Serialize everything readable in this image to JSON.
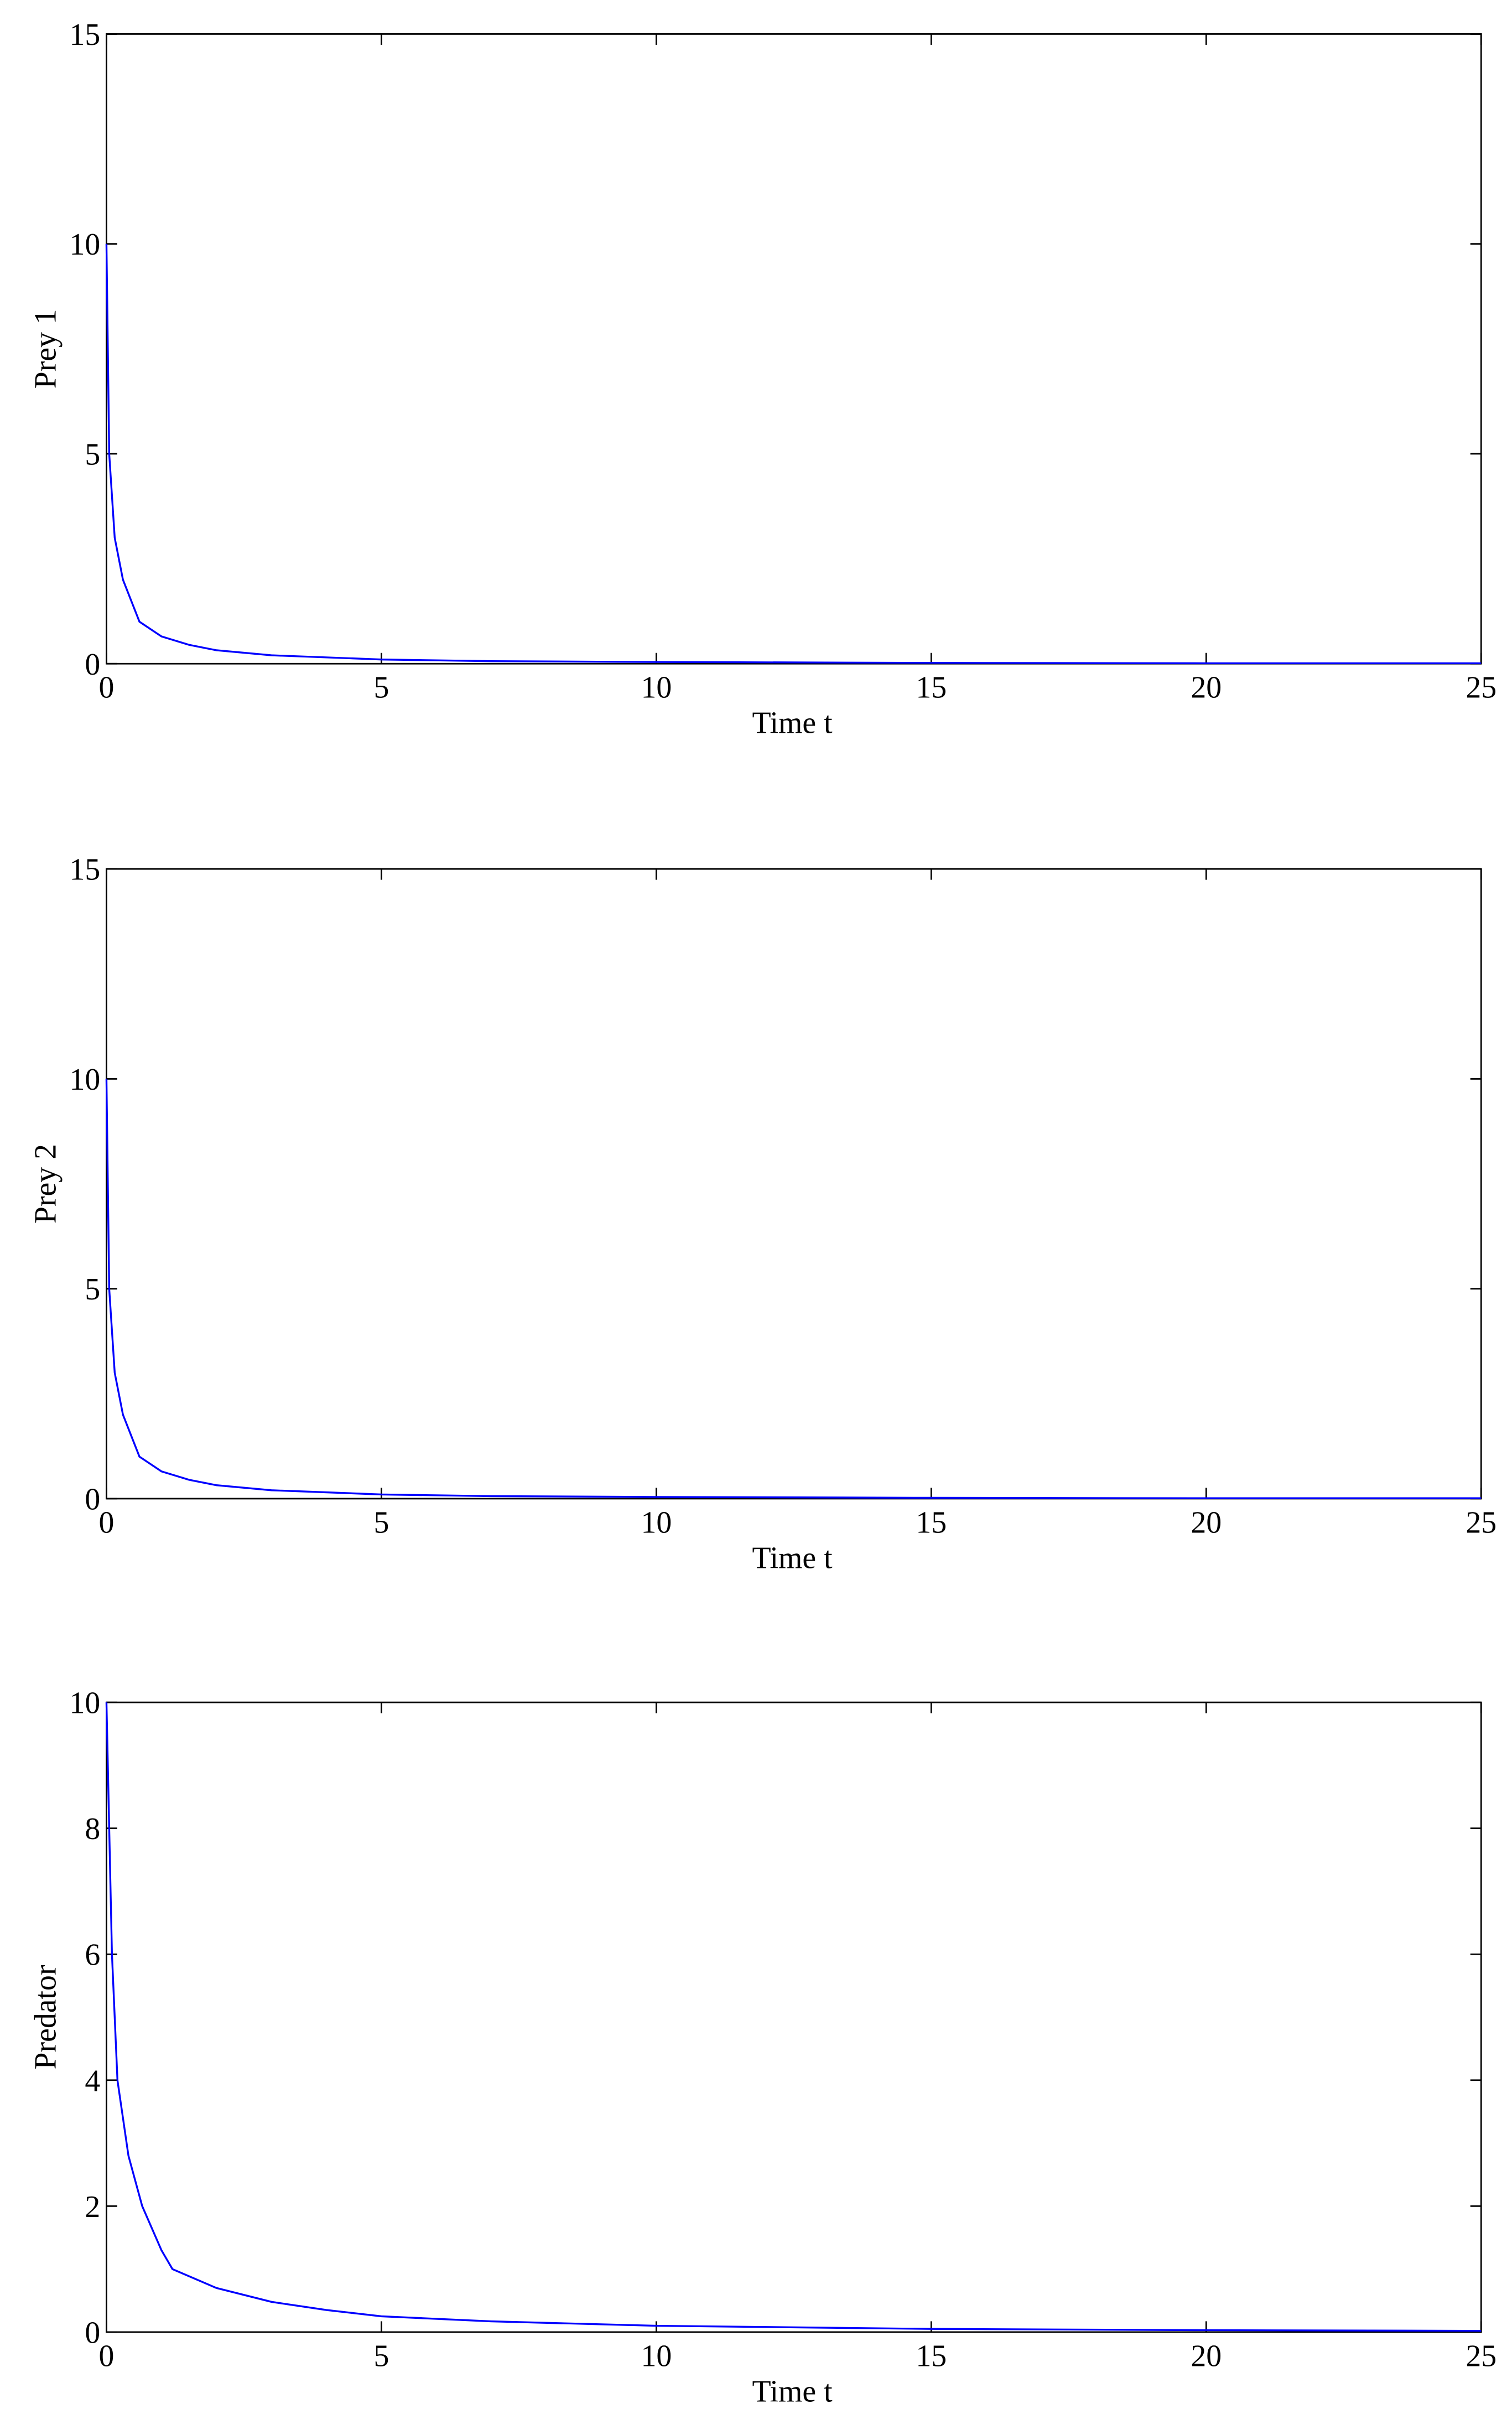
{
  "chart_data": [
    {
      "type": "line",
      "x_label": "Time t",
      "y_label": "Prey 1",
      "x": [
        0,
        0.05,
        0.15,
        0.3,
        0.6,
        1,
        1.5,
        2,
        3,
        5,
        7,
        10,
        15,
        20,
        25
      ],
      "series": [
        {
          "color": "#0000ff",
          "values": [
            10,
            5,
            3,
            2,
            1,
            0.65,
            0.45,
            0.32,
            0.2,
            0.1,
            0.06,
            0.04,
            0.02,
            0.01,
            0.01
          ]
        }
      ],
      "xlim": [
        0,
        25
      ],
      "xticks": [
        0,
        5,
        10,
        15,
        20,
        25
      ],
      "ylim": [
        0,
        15
      ],
      "yticks": [
        0,
        5,
        10,
        15
      ]
    },
    {
      "type": "line",
      "x_label": "Time t",
      "y_label": "Prey 2",
      "x": [
        0,
        0.05,
        0.15,
        0.3,
        0.6,
        1,
        1.5,
        2,
        3,
        5,
        7,
        10,
        15,
        20,
        25
      ],
      "series": [
        {
          "color": "#0000ff",
          "values": [
            10,
            5,
            3,
            2,
            1,
            0.65,
            0.45,
            0.32,
            0.2,
            0.1,
            0.06,
            0.04,
            0.02,
            0.01,
            0.01
          ]
        }
      ],
      "xlim": [
        0,
        25
      ],
      "xticks": [
        0,
        5,
        10,
        15,
        20,
        25
      ],
      "ylim": [
        0,
        15
      ],
      "yticks": [
        0,
        5,
        10,
        15
      ]
    },
    {
      "type": "line",
      "x_label": "Time t",
      "y_label": "Predator",
      "x": [
        0,
        0.1,
        0.2,
        0.4,
        0.65,
        1,
        1.2,
        2,
        3,
        4,
        5,
        7,
        10,
        15,
        20,
        25
      ],
      "series": [
        {
          "color": "#0000ff",
          "values": [
            10,
            6,
            4,
            2.8,
            2,
            1.3,
            1,
            0.7,
            0.48,
            0.35,
            0.25,
            0.17,
            0.1,
            0.05,
            0.03,
            0.02
          ]
        }
      ],
      "xlim": [
        0,
        25
      ],
      "xticks": [
        0,
        5,
        10,
        15,
        20,
        25
      ],
      "ylim": [
        0,
        10
      ],
      "yticks": [
        0,
        2,
        4,
        6,
        8,
        10
      ]
    }
  ]
}
